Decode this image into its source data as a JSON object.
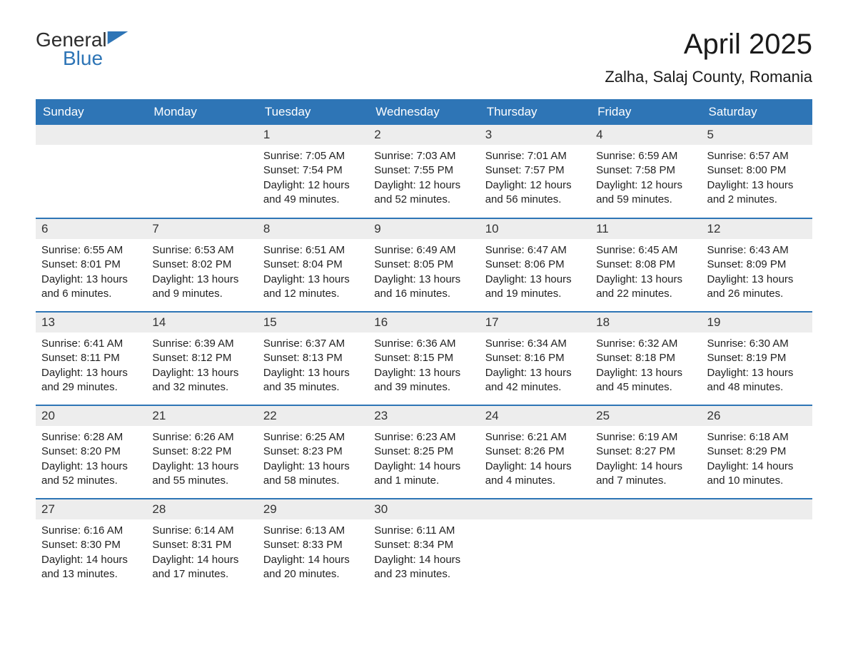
{
  "logo": {
    "text1": "General",
    "text2": "Blue"
  },
  "title": "April 2025",
  "location": "Zalha, Salaj County, Romania",
  "colors": {
    "header_bg": "#2e75b6",
    "header_text": "#ffffff",
    "daynum_bg": "#ededed",
    "row_border": "#2e75b6",
    "body_bg": "#ffffff",
    "text": "#222222"
  },
  "typography": {
    "title_fontsize": 40,
    "location_fontsize": 22,
    "header_fontsize": 17,
    "daynum_fontsize": 17,
    "content_fontsize": 15,
    "font_family": "Arial"
  },
  "layout": {
    "columns": 7,
    "rows": 5,
    "first_day_column_index": 2,
    "last_day": 30
  },
  "weekdays": [
    "Sunday",
    "Monday",
    "Tuesday",
    "Wednesday",
    "Thursday",
    "Friday",
    "Saturday"
  ],
  "days": {
    "1": {
      "sunrise": "7:05 AM",
      "sunset": "7:54 PM",
      "daylight": "12 hours and 49 minutes."
    },
    "2": {
      "sunrise": "7:03 AM",
      "sunset": "7:55 PM",
      "daylight": "12 hours and 52 minutes."
    },
    "3": {
      "sunrise": "7:01 AM",
      "sunset": "7:57 PM",
      "daylight": "12 hours and 56 minutes."
    },
    "4": {
      "sunrise": "6:59 AM",
      "sunset": "7:58 PM",
      "daylight": "12 hours and 59 minutes."
    },
    "5": {
      "sunrise": "6:57 AM",
      "sunset": "8:00 PM",
      "daylight": "13 hours and 2 minutes."
    },
    "6": {
      "sunrise": "6:55 AM",
      "sunset": "8:01 PM",
      "daylight": "13 hours and 6 minutes."
    },
    "7": {
      "sunrise": "6:53 AM",
      "sunset": "8:02 PM",
      "daylight": "13 hours and 9 minutes."
    },
    "8": {
      "sunrise": "6:51 AM",
      "sunset": "8:04 PM",
      "daylight": "13 hours and 12 minutes."
    },
    "9": {
      "sunrise": "6:49 AM",
      "sunset": "8:05 PM",
      "daylight": "13 hours and 16 minutes."
    },
    "10": {
      "sunrise": "6:47 AM",
      "sunset": "8:06 PM",
      "daylight": "13 hours and 19 minutes."
    },
    "11": {
      "sunrise": "6:45 AM",
      "sunset": "8:08 PM",
      "daylight": "13 hours and 22 minutes."
    },
    "12": {
      "sunrise": "6:43 AM",
      "sunset": "8:09 PM",
      "daylight": "13 hours and 26 minutes."
    },
    "13": {
      "sunrise": "6:41 AM",
      "sunset": "8:11 PM",
      "daylight": "13 hours and 29 minutes."
    },
    "14": {
      "sunrise": "6:39 AM",
      "sunset": "8:12 PM",
      "daylight": "13 hours and 32 minutes."
    },
    "15": {
      "sunrise": "6:37 AM",
      "sunset": "8:13 PM",
      "daylight": "13 hours and 35 minutes."
    },
    "16": {
      "sunrise": "6:36 AM",
      "sunset": "8:15 PM",
      "daylight": "13 hours and 39 minutes."
    },
    "17": {
      "sunrise": "6:34 AM",
      "sunset": "8:16 PM",
      "daylight": "13 hours and 42 minutes."
    },
    "18": {
      "sunrise": "6:32 AM",
      "sunset": "8:18 PM",
      "daylight": "13 hours and 45 minutes."
    },
    "19": {
      "sunrise": "6:30 AM",
      "sunset": "8:19 PM",
      "daylight": "13 hours and 48 minutes."
    },
    "20": {
      "sunrise": "6:28 AM",
      "sunset": "8:20 PM",
      "daylight": "13 hours and 52 minutes."
    },
    "21": {
      "sunrise": "6:26 AM",
      "sunset": "8:22 PM",
      "daylight": "13 hours and 55 minutes."
    },
    "22": {
      "sunrise": "6:25 AM",
      "sunset": "8:23 PM",
      "daylight": "13 hours and 58 minutes."
    },
    "23": {
      "sunrise": "6:23 AM",
      "sunset": "8:25 PM",
      "daylight": "14 hours and 1 minute."
    },
    "24": {
      "sunrise": "6:21 AM",
      "sunset": "8:26 PM",
      "daylight": "14 hours and 4 minutes."
    },
    "25": {
      "sunrise": "6:19 AM",
      "sunset": "8:27 PM",
      "daylight": "14 hours and 7 minutes."
    },
    "26": {
      "sunrise": "6:18 AM",
      "sunset": "8:29 PM",
      "daylight": "14 hours and 10 minutes."
    },
    "27": {
      "sunrise": "6:16 AM",
      "sunset": "8:30 PM",
      "daylight": "14 hours and 13 minutes."
    },
    "28": {
      "sunrise": "6:14 AM",
      "sunset": "8:31 PM",
      "daylight": "14 hours and 17 minutes."
    },
    "29": {
      "sunrise": "6:13 AM",
      "sunset": "8:33 PM",
      "daylight": "14 hours and 20 minutes."
    },
    "30": {
      "sunrise": "6:11 AM",
      "sunset": "8:34 PM",
      "daylight": "14 hours and 23 minutes."
    }
  },
  "labels": {
    "sunrise_prefix": "Sunrise: ",
    "sunset_prefix": "Sunset: ",
    "daylight_prefix": "Daylight: "
  }
}
